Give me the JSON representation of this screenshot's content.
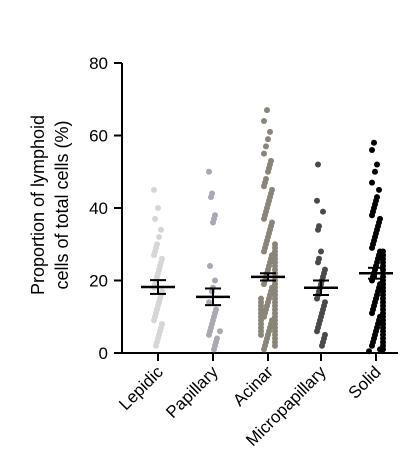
{
  "chart_data": {
    "type": "scatter",
    "title": "",
    "xlabel": "",
    "ylabel_lines": [
      "Proportion of lymphoid",
      "cells of total cells (%)"
    ],
    "ylim": [
      0,
      80
    ],
    "yticks": [
      "0",
      "20",
      "40",
      "60",
      "80"
    ],
    "grid": false,
    "categories": [
      "Lepidic",
      "Papillary",
      "Acinar",
      "Micropapillary",
      "Solid"
    ],
    "colors": {
      "Lepidic": "#d6d6d6",
      "Papillary": "#a9a9b6",
      "Acinar": "#8a8578",
      "Micropapillary": "#4a4a4a",
      "Solid": "#000000"
    },
    "series": [
      {
        "category": "Lepidic",
        "mean": 18.2,
        "sem": 1.9,
        "values": [
          45,
          40,
          37,
          34,
          32,
          30,
          29,
          28,
          27,
          26,
          25,
          24,
          23,
          22,
          21,
          20,
          19,
          18,
          17,
          16,
          15,
          14,
          13,
          12,
          11,
          10,
          9,
          8,
          7,
          6,
          5,
          4,
          3,
          2
        ]
      },
      {
        "category": "Papillary",
        "mean": 15.5,
        "sem": 2.3,
        "values": [
          50,
          44,
          43,
          38,
          37,
          36,
          24,
          20,
          18,
          17,
          14,
          12,
          11,
          10,
          9,
          8,
          7,
          6,
          6,
          5,
          4,
          3,
          2,
          1
        ]
      },
      {
        "category": "Acinar",
        "mean": 21.0,
        "sem": 1.0,
        "values": [
          67,
          64,
          61,
          59,
          57,
          55,
          53,
          52,
          51,
          50,
          48,
          47,
          46,
          45,
          44,
          43,
          42,
          41,
          40,
          39,
          38,
          37,
          36,
          35,
          34,
          33,
          32,
          31,
          30,
          30,
          29,
          29,
          28,
          28,
          27,
          27,
          26,
          26,
          25,
          25,
          24,
          24,
          23,
          23,
          22,
          22,
          21,
          21,
          20,
          20,
          19,
          19,
          18,
          18,
          17,
          17,
          16,
          16,
          15,
          15,
          15,
          14,
          14,
          14,
          13,
          13,
          13,
          12,
          12,
          12,
          11,
          11,
          11,
          10,
          10,
          10,
          9,
          9,
          9,
          8,
          8,
          8,
          7,
          7,
          7,
          6,
          6,
          6,
          5,
          5,
          5,
          4,
          4,
          3,
          3,
          2,
          2,
          1
        ]
      },
      {
        "category": "Micropapillary",
        "mean": 18.0,
        "sem": 2.0,
        "values": [
          52,
          42,
          39,
          35,
          34,
          28,
          26,
          25,
          23,
          22,
          21,
          20,
          19,
          18,
          17,
          16,
          15,
          14,
          13,
          12,
          11,
          10,
          9,
          8,
          7,
          6,
          5,
          4,
          3,
          2
        ]
      },
      {
        "category": "Solid",
        "mean": 22.0,
        "sem": 1.5,
        "values": [
          58,
          56,
          52,
          50,
          47,
          45,
          43,
          42,
          41,
          40,
          39,
          38,
          37,
          36,
          35,
          34,
          33,
          32,
          31,
          30,
          29,
          28,
          28,
          27,
          27,
          26,
          26,
          25,
          25,
          24,
          24,
          23,
          23,
          22,
          22,
          21,
          21,
          20,
          20,
          19,
          19,
          18,
          18,
          17,
          17,
          16,
          16,
          15,
          15,
          14,
          14,
          13,
          13,
          12,
          12,
          11,
          11,
          10,
          10,
          9,
          9,
          8,
          8,
          7,
          7,
          6,
          6,
          5,
          5,
          4,
          4,
          3,
          3,
          2,
          2,
          1,
          1,
          0.5
        ]
      }
    ]
  }
}
